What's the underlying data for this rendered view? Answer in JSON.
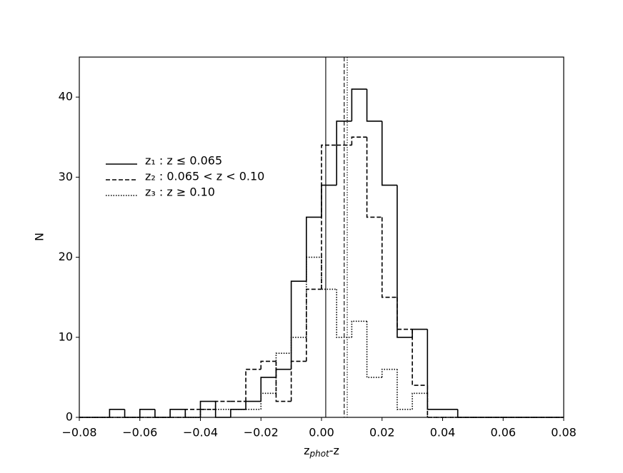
{
  "chart_data": {
    "type": "histogram",
    "xlabel": {
      "base": "z",
      "sub": "phot",
      "rest": "-z"
    },
    "ylabel": "N",
    "bins": [
      -0.08,
      -0.075,
      -0.07,
      -0.065,
      -0.06,
      -0.055,
      -0.05,
      -0.045,
      -0.04,
      -0.035,
      -0.03,
      -0.025,
      -0.02,
      -0.015,
      -0.01,
      -0.005,
      0,
      0.005,
      0.01,
      0.015,
      0.02,
      0.025,
      0.03,
      0.035,
      0.04,
      0.045,
      0.05,
      0.055,
      0.06,
      0.065,
      0.07,
      0.075,
      0.08
    ],
    "series": [
      {
        "name": "z₁ : z ≤ 0.065",
        "color": "#000000",
        "linestyle": "solid",
        "mean": 0.0014,
        "values": [
          0,
          0,
          1,
          0,
          1,
          0,
          1,
          0,
          2,
          0,
          1,
          2,
          5,
          6,
          17,
          25,
          29,
          37,
          41,
          37,
          29,
          10,
          11,
          1,
          1,
          0,
          0,
          0,
          0,
          0,
          0,
          0
        ]
      },
      {
        "name": "z₂ : 0.065 < z < 0.10",
        "color": "#000000",
        "linestyle": "dashed",
        "mean": 0.0075,
        "values": [
          0,
          0,
          0,
          0,
          0,
          0,
          0,
          1,
          1,
          2,
          2,
          6,
          7,
          2,
          7,
          16,
          34,
          34,
          35,
          25,
          15,
          11,
          4,
          0,
          0,
          0,
          0,
          0,
          0,
          0,
          0,
          0
        ]
      },
      {
        "name": "z₃ : z ≥ 0.10",
        "color": "#000000",
        "linestyle": "dotted",
        "mean": 0.0085,
        "values": [
          0,
          0,
          0,
          0,
          0,
          0,
          0,
          0,
          1,
          1,
          1,
          1,
          3,
          8,
          10,
          20,
          16,
          10,
          12,
          5,
          6,
          1,
          3,
          0,
          0,
          0,
          0,
          0,
          0,
          0,
          0,
          0
        ]
      }
    ],
    "xlim": [
      -0.08,
      0.08
    ],
    "xticks": [
      {
        "value": -0.08,
        "label": "−0.08"
      },
      {
        "value": -0.06,
        "label": "−0.06"
      },
      {
        "value": -0.04,
        "label": "−0.04"
      },
      {
        "value": -0.02,
        "label": "−0.02"
      },
      {
        "value": 0,
        "label": "0.00"
      },
      {
        "value": 0.02,
        "label": "0.02"
      },
      {
        "value": 0.04,
        "label": "0.04"
      },
      {
        "value": 0.06,
        "label": "0.06"
      },
      {
        "value": 0.08,
        "label": "0.08"
      }
    ],
    "ylim": [
      0,
      45
    ],
    "yticks": [
      0,
      10,
      20,
      30,
      40
    ],
    "legend": "upper left"
  }
}
